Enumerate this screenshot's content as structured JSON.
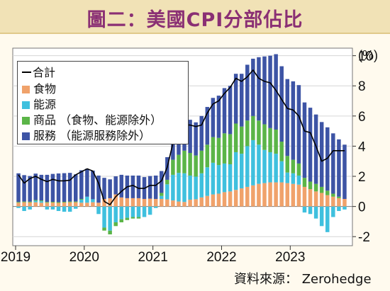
{
  "title": "圖二：美國CPI分部佔比",
  "source": "資料來源： Zerohedge",
  "chart_data": {
    "type": "bar",
    "title": "圖二：美國CPI分部佔比",
    "ylabel": "(%)",
    "ylim": [
      -2.6,
      10.5
    ],
    "y_ticks": [
      "-2",
      "0",
      "2",
      "4",
      "6",
      "8",
      "10"
    ],
    "x_ticks": [
      "2019",
      "2020",
      "2021",
      "2022",
      "2023"
    ],
    "grid": true,
    "legend_position": "top-left",
    "colors": {
      "food": "#f0a26b",
      "energy": "#3fc0de",
      "goods": "#5bb548",
      "services": "#3d54a5",
      "total": "#000000"
    },
    "legend": [
      {
        "key": "total",
        "label": "合計",
        "kind": "line"
      },
      {
        "key": "food",
        "label": "食物",
        "kind": "bar"
      },
      {
        "key": "energy",
        "label": "能源",
        "kind": "bar"
      },
      {
        "key": "goods",
        "label": "商品 （食物、能源除外）",
        "kind": "bar"
      },
      {
        "key": "services",
        "label": "服務 （能源服務除外）",
        "kind": "bar"
      }
    ],
    "categories": [
      "2019-01",
      "2019-02",
      "2019-03",
      "2019-04",
      "2019-05",
      "2019-06",
      "2019-07",
      "2019-08",
      "2019-09",
      "2019-10",
      "2019-11",
      "2019-12",
      "2020-01",
      "2020-02",
      "2020-03",
      "2020-04",
      "2020-05",
      "2020-06",
      "2020-07",
      "2020-08",
      "2020-09",
      "2020-10",
      "2020-11",
      "2020-12",
      "2021-01",
      "2021-02",
      "2021-03",
      "2021-04",
      "2021-05",
      "2021-06",
      "2021-07",
      "2021-08",
      "2021-09",
      "2021-10",
      "2021-11",
      "2021-12",
      "2022-01",
      "2022-02",
      "2022-03",
      "2022-04",
      "2022-05",
      "2022-06",
      "2022-07",
      "2022-08",
      "2022-09",
      "2022-10",
      "2022-11",
      "2022-12",
      "2023-01",
      "2023-02",
      "2023-03",
      "2023-04",
      "2023-05",
      "2023-06",
      "2023-07",
      "2023-08",
      "2023-09",
      "2023-10"
    ],
    "series": [
      {
        "name": "食物",
        "key": "food",
        "values": [
          0.25,
          0.28,
          0.27,
          0.28,
          0.25,
          0.25,
          0.26,
          0.24,
          0.26,
          0.28,
          0.28,
          0.25,
          0.25,
          0.28,
          0.25,
          0.5,
          0.55,
          0.8,
          0.6,
          0.55,
          0.55,
          0.55,
          0.5,
          0.52,
          0.5,
          0.5,
          0.47,
          0.4,
          0.33,
          0.3,
          0.45,
          0.48,
          0.6,
          0.7,
          0.8,
          0.85,
          0.95,
          1.0,
          1.1,
          1.2,
          1.3,
          1.4,
          1.5,
          1.55,
          1.6,
          1.6,
          1.6,
          1.55,
          1.5,
          1.45,
          1.3,
          1.15,
          1.0,
          0.9,
          0.75,
          0.65,
          0.55,
          0.5
        ]
      },
      {
        "name": "能源",
        "key": "energy",
        "values": [
          -0.1,
          -0.3,
          -0.2,
          0.1,
          0.1,
          -0.2,
          -0.2,
          -0.3,
          -0.35,
          -0.35,
          -0.15,
          0.2,
          0.4,
          0.2,
          -0.5,
          -1.4,
          -1.6,
          -1.05,
          -0.85,
          -0.75,
          -0.7,
          -0.7,
          -0.7,
          -0.55,
          -0.1,
          0.2,
          1.0,
          1.7,
          1.9,
          1.9,
          1.6,
          1.5,
          1.6,
          1.9,
          2.1,
          1.9,
          1.9,
          1.8,
          2.5,
          2.3,
          2.7,
          3.0,
          2.6,
          2.2,
          2.0,
          1.9,
          1.4,
          0.7,
          0.7,
          0.6,
          -0.4,
          -0.5,
          -0.8,
          -1.3,
          -1.7,
          -0.7,
          -0.3,
          -0.2
        ]
      },
      {
        "name": "商品 （食物、能源除外）",
        "key": "goods",
        "values": [
          0.05,
          0.05,
          0.05,
          0.05,
          0.05,
          0.05,
          0.05,
          0.05,
          0.05,
          0.05,
          0.05,
          0.05,
          0.0,
          0.0,
          0.0,
          -0.2,
          -0.25,
          -0.25,
          -0.2,
          -0.15,
          -0.1,
          -0.1,
          0.0,
          0.0,
          0.0,
          0.2,
          0.3,
          1.0,
          1.2,
          1.5,
          1.5,
          1.4,
          1.5,
          1.5,
          1.7,
          1.8,
          2.0,
          2.0,
          1.9,
          1.8,
          1.7,
          1.6,
          1.6,
          1.7,
          1.6,
          1.6,
          1.3,
          1.1,
          0.9,
          0.8,
          0.6,
          0.5,
          0.5,
          0.4,
          0.3,
          0.2,
          0.1,
          0.0
        ]
      },
      {
        "name": "服務 （能源服務除外）",
        "key": "services",
        "values": [
          1.9,
          1.75,
          1.7,
          1.75,
          1.7,
          1.8,
          1.85,
          1.9,
          1.9,
          1.9,
          1.8,
          1.9,
          1.85,
          1.9,
          1.8,
          1.4,
          1.25,
          1.2,
          1.5,
          1.5,
          1.5,
          1.5,
          1.45,
          1.5,
          1.55,
          1.45,
          1.5,
          1.8,
          2.0,
          2.1,
          2.2,
          2.2,
          2.3,
          2.5,
          2.6,
          2.8,
          3.0,
          3.2,
          3.3,
          3.5,
          3.7,
          3.8,
          4.2,
          4.5,
          4.8,
          5.0,
          5.0,
          5.1,
          5.2,
          5.2,
          5.0,
          4.9,
          4.6,
          4.3,
          4.2,
          4.0,
          3.8,
          3.6
        ]
      }
    ],
    "total_line": [
      2.1,
      1.55,
      1.85,
      2.0,
      1.8,
      1.65,
      1.8,
      1.7,
      1.7,
      1.75,
      2.1,
      2.3,
      2.5,
      2.35,
      1.55,
      0.33,
      0.12,
      0.65,
      1.0,
      1.3,
      1.4,
      1.2,
      1.2,
      1.4,
      1.4,
      1.7,
      2.6,
      4.2,
      5.0,
      5.4,
      5.4,
      5.3,
      5.4,
      6.2,
      6.8,
      7.0,
      7.5,
      7.9,
      8.5,
      8.3,
      8.6,
      9.05,
      8.5,
      8.3,
      8.2,
      7.7,
      7.1,
      6.5,
      6.4,
      6.0,
      5.0,
      4.9,
      4.0,
      3.0,
      3.2,
      3.7,
      3.7,
      3.7
    ]
  }
}
